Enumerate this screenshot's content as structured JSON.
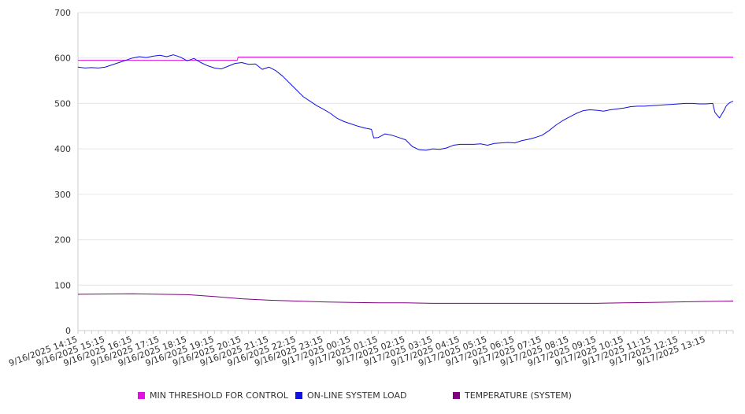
{
  "chart_data": {
    "type": "line",
    "title": "",
    "xlabel": "",
    "ylabel": "",
    "ylim": [
      0,
      700
    ],
    "yticks": [
      0,
      100,
      200,
      300,
      400,
      500,
      600,
      700
    ],
    "grid": true,
    "legend_position": "bottom",
    "x_tick_labels": [
      "9/16/2025 14:15",
      "9/16/2025 15:15",
      "9/16/2025 16:15",
      "9/16/2025 17:15",
      "9/16/2025 18:15",
      "9/16/2025 19:15",
      "9/16/2025 20:15",
      "9/16/2025 21:15",
      "9/16/2025 22:15",
      "9/16/2025 23:15",
      "9/17/2025 00:15",
      "9/17/2025 01:15",
      "9/17/2025 02:15",
      "9/17/2025 03:15",
      "9/17/2025 04:15",
      "9/17/2025 05:15",
      "9/17/2025 06:15",
      "9/17/2025 07:15",
      "9/17/2025 08:15",
      "9/17/2025 09:15",
      "9/17/2025 10:15",
      "9/17/2025 11:15",
      "9/17/2025 12:15",
      "9/17/2025 13:15"
    ],
    "x_start": "9/16/2025 14:15",
    "x_end": "9/17/2025 14:15",
    "series": [
      {
        "name": "MIN THRESHOLD FOR CONTROL",
        "color": "#e010e0",
        "points": [
          [
            "9/16/2025 14:15",
            595
          ],
          [
            "9/16/2025 20:05",
            595
          ],
          [
            "9/16/2025 20:07",
            602
          ],
          [
            "9/17/2025 14:15",
            602
          ]
        ]
      },
      {
        "name": "ON-LINE SYSTEM LOAD",
        "color": "#1010e0",
        "points": [
          [
            "9/16/2025 14:15",
            580
          ],
          [
            "9/16/2025 14:30",
            578
          ],
          [
            "9/16/2025 14:45",
            579
          ],
          [
            "9/16/2025 15:00",
            578
          ],
          [
            "9/16/2025 15:15",
            580
          ],
          [
            "9/16/2025 15:30",
            585
          ],
          [
            "9/16/2025 15:45",
            590
          ],
          [
            "9/16/2025 16:00",
            595
          ],
          [
            "9/16/2025 16:15",
            600
          ],
          [
            "9/16/2025 16:30",
            603
          ],
          [
            "9/16/2025 16:45",
            601
          ],
          [
            "9/16/2025 17:00",
            604
          ],
          [
            "9/16/2025 17:15",
            606
          ],
          [
            "9/16/2025 17:30",
            603
          ],
          [
            "9/16/2025 17:45",
            607
          ],
          [
            "9/16/2025 18:00",
            602
          ],
          [
            "9/16/2025 18:15",
            594
          ],
          [
            "9/16/2025 18:30",
            599
          ],
          [
            "9/16/2025 18:45",
            590
          ],
          [
            "9/16/2025 19:00",
            583
          ],
          [
            "9/16/2025 19:15",
            578
          ],
          [
            "9/16/2025 19:30",
            576
          ],
          [
            "9/16/2025 19:45",
            582
          ],
          [
            "9/16/2025 20:00",
            588
          ],
          [
            "9/16/2025 20:15",
            590
          ],
          [
            "9/16/2025 20:30",
            586
          ],
          [
            "9/16/2025 20:45",
            587
          ],
          [
            "9/16/2025 21:00",
            575
          ],
          [
            "9/16/2025 21:15",
            580
          ],
          [
            "9/16/2025 21:30",
            572
          ],
          [
            "9/16/2025 21:45",
            560
          ],
          [
            "9/16/2025 22:00",
            545
          ],
          [
            "9/16/2025 22:15",
            530
          ],
          [
            "9/16/2025 22:30",
            515
          ],
          [
            "9/16/2025 22:45",
            505
          ],
          [
            "9/16/2025 23:00",
            495
          ],
          [
            "9/16/2025 23:15",
            487
          ],
          [
            "9/16/2025 23:30",
            478
          ],
          [
            "9/16/2025 23:45",
            467
          ],
          [
            "9/17/2025 00:00",
            460
          ],
          [
            "9/17/2025 00:15",
            455
          ],
          [
            "9/17/2025 00:30",
            450
          ],
          [
            "9/17/2025 00:45",
            446
          ],
          [
            "9/17/2025 01:00",
            443
          ],
          [
            "9/17/2025 01:05",
            424
          ],
          [
            "9/17/2025 01:15",
            425
          ],
          [
            "9/17/2025 01:30",
            433
          ],
          [
            "9/17/2025 01:45",
            430
          ],
          [
            "9/17/2025 02:00",
            425
          ],
          [
            "9/17/2025 02:15",
            420
          ],
          [
            "9/17/2025 02:30",
            405
          ],
          [
            "9/17/2025 02:45",
            398
          ],
          [
            "9/17/2025 03:00",
            397
          ],
          [
            "9/17/2025 03:15",
            400
          ],
          [
            "9/17/2025 03:30",
            399
          ],
          [
            "9/17/2025 03:45",
            402
          ],
          [
            "9/17/2025 04:00",
            408
          ],
          [
            "9/17/2025 04:15",
            410
          ],
          [
            "9/17/2025 04:30",
            410
          ],
          [
            "9/17/2025 04:45",
            410
          ],
          [
            "9/17/2025 05:00",
            411
          ],
          [
            "9/17/2025 05:15",
            408
          ],
          [
            "9/17/2025 05:30",
            412
          ],
          [
            "9/17/2025 05:45",
            413
          ],
          [
            "9/17/2025 06:00",
            414
          ],
          [
            "9/17/2025 06:15",
            413
          ],
          [
            "9/17/2025 06:30",
            418
          ],
          [
            "9/17/2025 06:45",
            421
          ],
          [
            "9/17/2025 07:00",
            425
          ],
          [
            "9/17/2025 07:15",
            430
          ],
          [
            "9/17/2025 07:30",
            440
          ],
          [
            "9/17/2025 07:45",
            452
          ],
          [
            "9/17/2025 08:00",
            462
          ],
          [
            "9/17/2025 08:15",
            470
          ],
          [
            "9/17/2025 08:30",
            478
          ],
          [
            "9/17/2025 08:45",
            484
          ],
          [
            "9/17/2025 09:00",
            486
          ],
          [
            "9/17/2025 09:15",
            485
          ],
          [
            "9/17/2025 09:30",
            483
          ],
          [
            "9/17/2025 09:45",
            486
          ],
          [
            "9/17/2025 10:00",
            488
          ],
          [
            "9/17/2025 10:15",
            490
          ],
          [
            "9/17/2025 10:30",
            493
          ],
          [
            "9/17/2025 10:45",
            494
          ],
          [
            "9/17/2025 11:00",
            494
          ],
          [
            "9/17/2025 11:15",
            495
          ],
          [
            "9/17/2025 11:30",
            496
          ],
          [
            "9/17/2025 11:45",
            497
          ],
          [
            "9/17/2025 12:00",
            498
          ],
          [
            "9/17/2025 12:15",
            499
          ],
          [
            "9/17/2025 12:30",
            500
          ],
          [
            "9/17/2025 12:45",
            500
          ],
          [
            "9/17/2025 13:00",
            499
          ],
          [
            "9/17/2025 13:15",
            499
          ],
          [
            "9/17/2025 13:30",
            500
          ],
          [
            "9/17/2025 13:35",
            480
          ],
          [
            "9/17/2025 13:45",
            468
          ],
          [
            "9/17/2025 13:55",
            485
          ],
          [
            "9/17/2025 14:00",
            495
          ],
          [
            "9/17/2025 14:05",
            500
          ],
          [
            "9/17/2025 14:10",
            503
          ],
          [
            "9/17/2025 14:15",
            505
          ]
        ]
      },
      {
        "name": "TEMPERATURE (SYSTEM)",
        "color": "#800080",
        "points": [
          [
            "9/16/2025 14:15",
            80
          ],
          [
            "9/16/2025 16:15",
            81
          ],
          [
            "9/16/2025 17:15",
            80
          ],
          [
            "9/16/2025 18:15",
            79
          ],
          [
            "9/16/2025 19:15",
            75
          ],
          [
            "9/16/2025 20:15",
            70
          ],
          [
            "9/16/2025 21:15",
            67
          ],
          [
            "9/16/2025 22:15",
            65
          ],
          [
            "9/16/2025 23:15",
            63
          ],
          [
            "9/17/2025 00:15",
            62
          ],
          [
            "9/17/2025 01:15",
            61
          ],
          [
            "9/17/2025 02:15",
            61
          ],
          [
            "9/17/2025 03:15",
            60
          ],
          [
            "9/17/2025 05:15",
            60
          ],
          [
            "9/17/2025 07:15",
            60
          ],
          [
            "9/17/2025 09:15",
            60
          ],
          [
            "9/17/2025 10:15",
            61
          ],
          [
            "9/17/2025 11:15",
            62
          ],
          [
            "9/17/2025 12:15",
            63
          ],
          [
            "9/17/2025 13:15",
            64
          ],
          [
            "9/17/2025 14:15",
            65
          ]
        ]
      }
    ]
  }
}
